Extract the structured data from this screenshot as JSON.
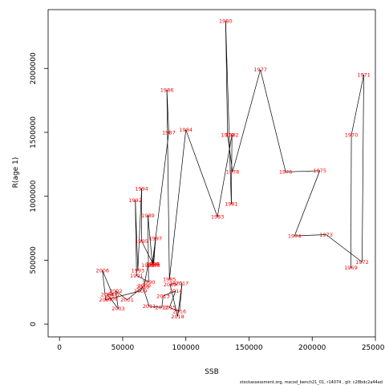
{
  "footer": "stockassessment.org, mscod_bench21_01, r14074 , git: c28bdc2a44ad",
  "chart_data": {
    "type": "scatter",
    "xlabel": "SSB",
    "ylabel": "R(age 1)",
    "xlim": [
      -9000,
      250000
    ],
    "ylim": [
      -100000,
      2460000
    ],
    "xticks": [
      0,
      50000,
      100000,
      150000,
      200000,
      250000
    ],
    "yticks": [
      0,
      500000,
      1000000,
      1500000,
      2000000
    ],
    "grid": false,
    "legend": "none",
    "line_color": "#000000",
    "label_color": "#ff0000",
    "points": [
      {
        "year": "1969",
        "x": 230600,
        "y": 440000
      },
      {
        "year": "1970",
        "x": 231000,
        "y": 1480000
      },
      {
        "year": "1971",
        "x": 240800,
        "y": 1950000
      },
      {
        "year": "1972",
        "x": 239500,
        "y": 485000
      },
      {
        "year": "1973",
        "x": 211000,
        "y": 700000
      },
      {
        "year": "1974",
        "x": 186000,
        "y": 690000
      },
      {
        "year": "1975",
        "x": 206000,
        "y": 1200000
      },
      {
        "year": "1976",
        "x": 179000,
        "y": 1190000
      },
      {
        "year": "1977",
        "x": 159000,
        "y": 1990000
      },
      {
        "year": "1978",
        "x": 137000,
        "y": 1190000
      },
      {
        "year": "1979",
        "x": 133000,
        "y": 1480000
      },
      {
        "year": "1980",
        "x": 131500,
        "y": 2370000
      },
      {
        "year": "1981",
        "x": 136000,
        "y": 940000
      },
      {
        "year": "1982",
        "x": 136500,
        "y": 1480000
      },
      {
        "year": "1983",
        "x": 125000,
        "y": 840000
      },
      {
        "year": "1984",
        "x": 100000,
        "y": 1520000
      },
      {
        "year": "1985",
        "x": 87000,
        "y": 350000
      },
      {
        "year": "1986",
        "x": 85000,
        "y": 1830000
      },
      {
        "year": "1987",
        "x": 86500,
        "y": 1500000
      },
      {
        "year": "1988",
        "x": 73500,
        "y": 470000
      },
      {
        "year": "1989",
        "x": 70000,
        "y": 850000
      },
      {
        "year": "1990",
        "x": 70500,
        "y": 330000
      },
      {
        "year": "1991",
        "x": 61000,
        "y": 380000
      },
      {
        "year": "1992",
        "x": 60000,
        "y": 970000
      },
      {
        "year": "1993",
        "x": 62000,
        "y": 420000
      },
      {
        "year": "1994",
        "x": 65000,
        "y": 1060000
      },
      {
        "year": "1995",
        "x": 65000,
        "y": 650000
      },
      {
        "year": "1996",
        "x": 74000,
        "y": 470000
      },
      {
        "year": "1997",
        "x": 76000,
        "y": 670000
      },
      {
        "year": "1998",
        "x": 74500,
        "y": 460000
      },
      {
        "year": "1999",
        "x": 70000,
        "y": 460000
      },
      {
        "year": "2000",
        "x": 67000,
        "y": 300000
      },
      {
        "year": "2001",
        "x": 53500,
        "y": 190000
      },
      {
        "year": "2002",
        "x": 44500,
        "y": 260000
      },
      {
        "year": "2003",
        "x": 46500,
        "y": 120000
      },
      {
        "year": "2004",
        "x": 38000,
        "y": 230000
      },
      {
        "year": "2005",
        "x": 42000,
        "y": 230000
      },
      {
        "year": "2006",
        "x": 34000,
        "y": 420000
      },
      {
        "year": "2007",
        "x": 36500,
        "y": 190000
      },
      {
        "year": "2008",
        "x": 41000,
        "y": 200000
      },
      {
        "year": "2009",
        "x": 64000,
        "y": 260000
      },
      {
        "year": "2010",
        "x": 66000,
        "y": 290000
      },
      {
        "year": "2011",
        "x": 71000,
        "y": 140000
      },
      {
        "year": "2012",
        "x": 81000,
        "y": 130000
      },
      {
        "year": "2013",
        "x": 82000,
        "y": 220000
      },
      {
        "year": "2014",
        "x": 92000,
        "y": 260000
      },
      {
        "year": "2015",
        "x": 87000,
        "y": 130000
      },
      {
        "year": "2016",
        "x": 95000,
        "y": 100000
      },
      {
        "year": "2017",
        "x": 97000,
        "y": 320000
      },
      {
        "year": "2018",
        "x": 93500,
        "y": 60000
      },
      {
        "year": "2019",
        "x": 87500,
        "y": 310000
      },
      {
        "year": "2020",
        "x": 92000,
        "y": 320000
      }
    ]
  }
}
